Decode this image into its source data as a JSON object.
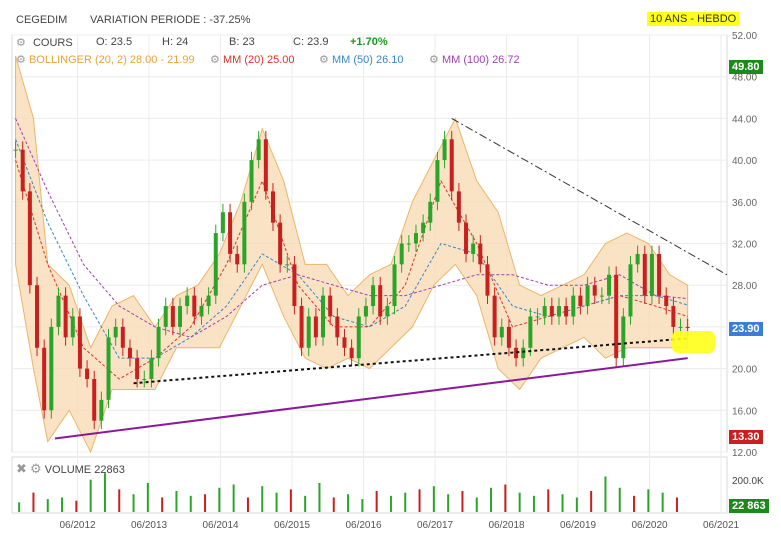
{
  "header": {
    "ticker": "CEGEDIM",
    "variation_label": "VARIATION PERIODE :",
    "variation_value": "-37.25%",
    "period": "10 ANS - HEBDO"
  },
  "ohlc": {
    "label": "COURS",
    "open_label": "O:",
    "open": "23.5",
    "high_label": "H:",
    "high": "24",
    "low_label": "B:",
    "low": "23",
    "close_label": "C:",
    "close": "23.9",
    "change": "+1.70%"
  },
  "indicators": [
    {
      "label": "BOLLINGER (20, 2)",
      "value": "28.00 - 21.99",
      "color": "#e8a23a"
    },
    {
      "label": "MM (20)",
      "value": "25.00",
      "color": "#d9342b"
    },
    {
      "label": "MM (50)",
      "value": "26.10",
      "color": "#3a86c8"
    },
    {
      "label": "MM (100)",
      "value": "26.72",
      "color": "#a040b0"
    }
  ],
  "tags": {
    "high": "49.80",
    "last": "23.90",
    "low": "13.30",
    "volume_last": "22 863"
  },
  "volume_panel": {
    "label": "VOLUME",
    "value": "22863",
    "axis_label": "200.0K"
  },
  "chart_data": {
    "type": "line",
    "title": "CEGEDIM",
    "ylim": [
      12,
      52
    ],
    "y_ticks": [
      "52.00",
      "48.00",
      "44.00",
      "40.00",
      "36.00",
      "32.00",
      "28.00",
      "24.00",
      "20.00",
      "16.00",
      "12.00"
    ],
    "x_ticks": [
      "06/2012",
      "06/2013",
      "06/2014",
      "06/2015",
      "06/2016",
      "06/2017",
      "06/2018",
      "06/2019",
      "06/2020",
      "06/2021"
    ],
    "xlim": [
      2011.5,
      2021.5
    ],
    "series": [
      {
        "name": "COURS",
        "x": [
          2011.55,
          2011.65,
          2011.75,
          2011.85,
          2011.95,
          2012.05,
          2012.15,
          2012.25,
          2012.35,
          2012.45,
          2012.55,
          2012.65,
          2012.75,
          2012.85,
          2012.95,
          2013.05,
          2013.15,
          2013.25,
          2013.35,
          2013.45,
          2013.55,
          2013.65,
          2013.75,
          2013.85,
          2013.95,
          2014.05,
          2014.15,
          2014.25,
          2014.35,
          2014.45,
          2014.55,
          2014.65,
          2014.75,
          2014.85,
          2014.95,
          2015.05,
          2015.15,
          2015.25,
          2015.35,
          2015.45,
          2015.55,
          2015.65,
          2015.75,
          2015.85,
          2015.95,
          2016.05,
          2016.15,
          2016.25,
          2016.35,
          2016.45,
          2016.55,
          2016.65,
          2016.75,
          2016.85,
          2016.95,
          2017.05,
          2017.15,
          2017.25,
          2017.35,
          2017.45,
          2017.55,
          2017.65,
          2017.75,
          2017.85,
          2017.95,
          2018.05,
          2018.15,
          2018.25,
          2018.35,
          2018.45,
          2018.55,
          2018.65,
          2018.75,
          2018.85,
          2018.95,
          2019.05,
          2019.15,
          2019.25,
          2019.35,
          2019.45,
          2019.55,
          2019.65,
          2019.75,
          2019.85,
          2019.95,
          2020.05,
          2020.15,
          2020.25,
          2020.35,
          2020.45,
          2020.55,
          2020.65,
          2020.75,
          2020.85,
          2020.95
        ],
        "values": [
          41,
          37,
          28,
          22,
          16,
          24,
          27,
          23,
          25,
          20,
          19,
          15,
          17,
          23,
          24,
          22,
          21,
          19,
          19,
          21,
          24,
          26,
          24,
          26,
          27,
          25,
          26,
          27,
          33,
          35,
          31,
          30,
          36,
          40,
          42,
          37,
          34,
          30,
          30,
          26,
          22,
          25,
          23,
          27,
          25,
          23,
          22,
          21,
          25,
          26,
          28,
          25,
          26,
          30,
          32,
          32,
          33,
          34,
          36,
          40,
          42,
          37,
          34,
          31,
          32,
          30,
          27,
          23,
          24,
          22,
          21,
          22,
          25,
          25,
          26,
          25,
          26,
          25,
          27,
          26,
          28,
          27,
          27,
          29,
          21,
          25,
          30,
          31,
          27,
          31,
          27,
          26,
          24,
          24,
          23.9
        ]
      },
      {
        "name": "MM (20)",
        "x": [
          2011.55,
          2012.0,
          2012.5,
          2013.0,
          2013.5,
          2014.0,
          2014.5,
          2015.0,
          2015.5,
          2016.0,
          2016.5,
          2017.0,
          2017.5,
          2018.0,
          2018.5,
          2019.0,
          2019.5,
          2020.0,
          2020.5,
          2020.95
        ],
        "values": [
          40,
          30,
          22,
          19,
          21,
          24,
          30,
          38,
          28,
          24,
          24,
          28,
          38,
          32,
          24,
          25,
          26,
          27,
          26,
          25
        ]
      },
      {
        "name": "MM (50)",
        "x": [
          2011.55,
          2012.0,
          2012.5,
          2013.0,
          2013.5,
          2014.0,
          2014.5,
          2015.0,
          2015.5,
          2016.0,
          2016.5,
          2017.0,
          2017.5,
          2018.0,
          2018.5,
          2019.0,
          2019.5,
          2020.0,
          2020.5,
          2020.95
        ],
        "values": [
          42,
          34,
          27,
          21,
          21,
          23,
          26,
          31,
          29,
          25,
          24,
          26,
          32,
          31,
          26,
          25,
          26,
          27,
          27,
          26.1
        ]
      },
      {
        "name": "MM (100)",
        "x": [
          2011.55,
          2012.0,
          2012.5,
          2013.0,
          2013.5,
          2014.0,
          2014.5,
          2015.0,
          2015.5,
          2016.0,
          2016.5,
          2017.0,
          2017.5,
          2018.0,
          2018.5,
          2019.0,
          2019.5,
          2020.0,
          2020.5,
          2020.95
        ],
        "values": [
          44,
          37,
          30,
          26,
          24,
          23,
          25,
          28,
          29,
          28,
          27,
          27,
          28,
          29,
          29,
          28,
          28,
          29,
          27,
          26.72
        ]
      }
    ],
    "bollinger": {
      "x": [
        2011.55,
        2011.8,
        2012.0,
        2012.3,
        2012.6,
        2012.9,
        2013.2,
        2013.5,
        2013.8,
        2014.1,
        2014.4,
        2014.7,
        2015.0,
        2015.3,
        2015.6,
        2015.9,
        2016.2,
        2016.5,
        2016.8,
        2017.1,
        2017.4,
        2017.7,
        2018.0,
        2018.3,
        2018.6,
        2018.9,
        2019.2,
        2019.5,
        2019.8,
        2020.1,
        2020.4,
        2020.7,
        2020.95
      ],
      "upper": [
        50,
        44,
        30,
        28,
        22,
        26,
        27,
        24,
        27,
        28,
        31,
        36,
        43,
        38,
        30,
        30,
        27,
        29,
        30,
        36,
        40,
        44,
        38,
        35,
        28,
        27,
        28,
        29,
        32,
        33,
        32,
        29,
        28
      ],
      "lower": [
        30,
        20,
        13,
        16,
        12,
        18,
        18,
        18,
        22,
        22,
        22,
        26,
        30,
        25,
        21,
        20,
        21,
        20,
        22,
        24,
        28,
        30,
        27,
        20,
        18,
        21,
        22,
        23,
        21,
        22,
        22,
        22,
        22
      ]
    },
    "trendlines": [
      {
        "name": "support",
        "x": [
          2012.1,
          2020.95
        ],
        "values": [
          13.3,
          21
        ]
      },
      {
        "name": "support-dotted",
        "x": [
          2013.2,
          2020.95
        ],
        "values": [
          18.6,
          22.9
        ]
      },
      {
        "name": "resistance",
        "x": [
          2017.65,
          2021.5
        ],
        "values": [
          44,
          29
        ]
      }
    ]
  },
  "volume_data": {
    "x": [
      2011.6,
      2011.8,
      2012.0,
      2012.2,
      2012.4,
      2012.6,
      2012.8,
      2013.0,
      2013.2,
      2013.4,
      2013.6,
      2013.8,
      2014.0,
      2014.2,
      2014.4,
      2014.6,
      2014.8,
      2015.0,
      2015.2,
      2015.4,
      2015.6,
      2015.8,
      2016.0,
      2016.2,
      2016.4,
      2016.6,
      2016.8,
      2017.0,
      2017.2,
      2017.4,
      2017.6,
      2017.8,
      2018.0,
      2018.2,
      2018.4,
      2018.6,
      2018.8,
      2019.0,
      2019.2,
      2019.4,
      2019.6,
      2019.8,
      2020.0,
      2020.2,
      2020.4,
      2020.6,
      2020.8
    ],
    "values": [
      60,
      120,
      80,
      90,
      70,
      200,
      240,
      140,
      110,
      180,
      90,
      130,
      100,
      110,
      150,
      170,
      90,
      160,
      120,
      140,
      100,
      180,
      90,
      110,
      80,
      130,
      100,
      120,
      140,
      160,
      110,
      130,
      90,
      150,
      170,
      120,
      100,
      140,
      110,
      90,
      130,
      220,
      150,
      100,
      140,
      120,
      90
    ],
    "max": 260
  }
}
